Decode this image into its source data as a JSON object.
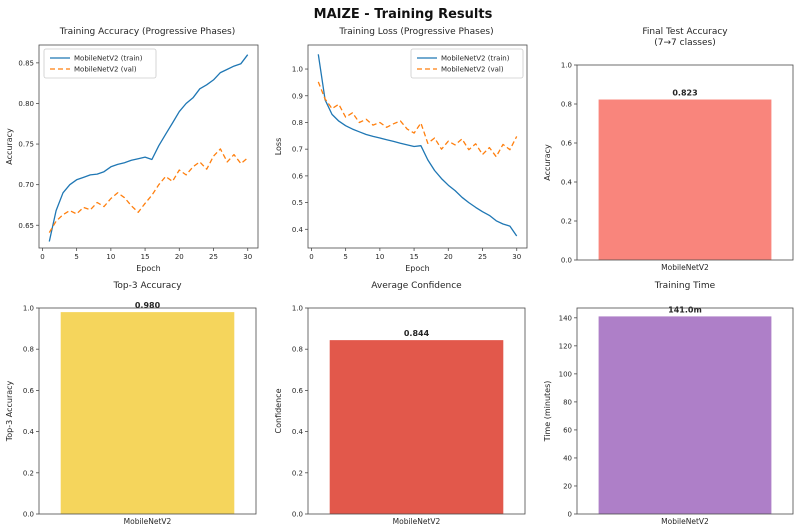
{
  "figure": {
    "title": "MAIZE - Training Results"
  },
  "colors": {
    "train_line": "#1f77b4",
    "val_line": "#ff7f0e"
  },
  "chart_data": [
    {
      "type": "line",
      "title": "Training Accuracy (Progressive Phases)",
      "xlabel": "Epoch",
      "ylabel": "Accuracy",
      "xlim": [
        -0.5,
        31.5
      ],
      "ylim": [
        0.622,
        0.872
      ],
      "xticks": [
        "0",
        "5",
        "10",
        "15",
        "20",
        "25",
        "30"
      ],
      "yticks": [
        "0.65",
        "0.70",
        "0.75",
        "0.80",
        "0.85"
      ],
      "legend_position": "upper-left",
      "x": [
        1,
        2,
        3,
        4,
        5,
        6,
        7,
        8,
        9,
        10,
        11,
        12,
        13,
        14,
        15,
        16,
        17,
        18,
        19,
        20,
        21,
        22,
        23,
        24,
        25,
        26,
        27,
        28,
        29,
        30
      ],
      "series": [
        {
          "name": "MobileNetV2 (train)",
          "color": "#1f77b4",
          "style": "solid",
          "values": [
            0.63,
            0.668,
            0.69,
            0.7,
            0.706,
            0.709,
            0.712,
            0.713,
            0.716,
            0.722,
            0.725,
            0.727,
            0.73,
            0.732,
            0.734,
            0.731,
            0.748,
            0.762,
            0.776,
            0.79,
            0.8,
            0.807,
            0.818,
            0.823,
            0.829,
            0.838,
            0.842,
            0.846,
            0.849,
            0.86
          ]
        },
        {
          "name": "MobileNetV2 (val)",
          "color": "#ff7f0e",
          "style": "dashed",
          "values": [
            0.641,
            0.655,
            0.663,
            0.668,
            0.664,
            0.672,
            0.669,
            0.678,
            0.673,
            0.683,
            0.69,
            0.684,
            0.674,
            0.666,
            0.677,
            0.687,
            0.7,
            0.71,
            0.704,
            0.718,
            0.712,
            0.722,
            0.728,
            0.719,
            0.735,
            0.744,
            0.728,
            0.737,
            0.726,
            0.733
          ]
        }
      ]
    },
    {
      "type": "line",
      "title": "Training Loss (Progressive Phases)",
      "xlabel": "Epoch",
      "ylabel": "Loss",
      "xlim": [
        -0.5,
        31.5
      ],
      "ylim": [
        0.33,
        1.09
      ],
      "xticks": [
        "0",
        "5",
        "10",
        "15",
        "20",
        "25",
        "30"
      ],
      "yticks": [
        "0.4",
        "0.5",
        "0.6",
        "0.7",
        "0.8",
        "0.9",
        "1.0"
      ],
      "legend_position": "upper-right",
      "x": [
        1,
        2,
        3,
        4,
        5,
        6,
        7,
        8,
        9,
        10,
        11,
        12,
        13,
        14,
        15,
        16,
        17,
        18,
        19,
        20,
        21,
        22,
        23,
        24,
        25,
        26,
        27,
        28,
        29,
        30
      ],
      "series": [
        {
          "name": "MobileNetV2 (train)",
          "color": "#1f77b4",
          "style": "solid",
          "values": [
            1.055,
            0.885,
            0.83,
            0.805,
            0.788,
            0.775,
            0.765,
            0.755,
            0.748,
            0.742,
            0.735,
            0.729,
            0.722,
            0.716,
            0.71,
            0.713,
            0.66,
            0.62,
            0.59,
            0.565,
            0.545,
            0.52,
            0.5,
            0.482,
            0.466,
            0.452,
            0.432,
            0.42,
            0.412,
            0.375
          ]
        },
        {
          "name": "MobileNetV2 (val)",
          "color": "#ff7f0e",
          "style": "dashed",
          "values": [
            0.952,
            0.888,
            0.852,
            0.868,
            0.82,
            0.836,
            0.8,
            0.812,
            0.79,
            0.8,
            0.782,
            0.795,
            0.806,
            0.775,
            0.76,
            0.798,
            0.722,
            0.742,
            0.7,
            0.73,
            0.716,
            0.738,
            0.698,
            0.72,
            0.68,
            0.706,
            0.672,
            0.718,
            0.698,
            0.748
          ]
        }
      ]
    },
    {
      "type": "bar",
      "title": "Final Test Accuracy",
      "subtitle": "(7→7 classes)",
      "ylabel": "Accuracy",
      "ylim": [
        0,
        1.0
      ],
      "yticks": [
        "0.0",
        "0.2",
        "0.4",
        "0.6",
        "0.8",
        "1.0"
      ],
      "categories": [
        "MobileNetV2"
      ],
      "values": [
        0.823
      ],
      "value_labels": [
        "0.823"
      ],
      "bar_color": "#f9857c"
    },
    {
      "type": "bar",
      "title": "Top-3 Accuracy",
      "ylabel": "Top-3 Accuracy",
      "ylim": [
        0,
        1.0
      ],
      "yticks": [
        "0.0",
        "0.2",
        "0.4",
        "0.6",
        "0.8",
        "1.0"
      ],
      "categories": [
        "MobileNetV2"
      ],
      "values": [
        0.98
      ],
      "value_labels": [
        "0.980"
      ],
      "bar_color": "#f5d55c"
    },
    {
      "type": "bar",
      "title": "Average Confidence",
      "ylabel": "Confidence",
      "ylim": [
        0,
        1.0
      ],
      "yticks": [
        "0.0",
        "0.2",
        "0.4",
        "0.6",
        "0.8",
        "1.0"
      ],
      "categories": [
        "MobileNetV2"
      ],
      "values": [
        0.844
      ],
      "value_labels": [
        "0.844"
      ],
      "bar_color": "#e2584b"
    },
    {
      "type": "bar",
      "title": "Training Time",
      "ylabel": "Time (minutes)",
      "ylim": [
        0,
        147
      ],
      "yticks": [
        "0",
        "20",
        "40",
        "60",
        "80",
        "100",
        "120",
        "140"
      ],
      "categories": [
        "MobileNetV2"
      ],
      "values": [
        141.0
      ],
      "value_labels": [
        "141.0m"
      ],
      "bar_color": "#ae7fc8"
    }
  ]
}
